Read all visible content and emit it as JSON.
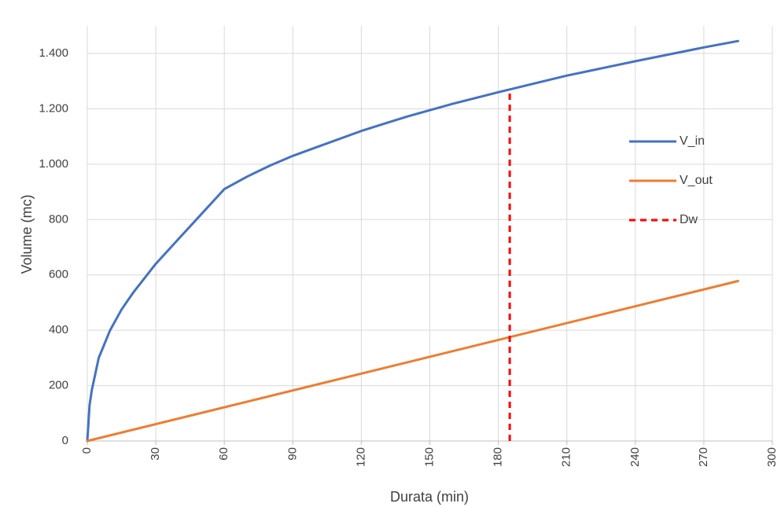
{
  "chart_data": {
    "type": "line",
    "title": "",
    "xlabel": "Durata (min)",
    "ylabel": "Volume (mc)",
    "xlim": [
      0,
      300
    ],
    "ylim": [
      0,
      1400
    ],
    "xticks": [
      0,
      30,
      60,
      90,
      120,
      150,
      180,
      210,
      240,
      270,
      300
    ],
    "yticks": [
      0,
      200,
      400,
      600,
      800,
      1000,
      1200,
      1400
    ],
    "ytick_labels": [
      "0",
      "200",
      "400",
      "600",
      "800",
      "1.000",
      "1.200",
      "1.400"
    ],
    "grid": true,
    "legend_position": "right",
    "series": [
      {
        "name": "V_in",
        "color": "#4472c4",
        "style": "solid",
        "x": [
          0,
          1,
          2,
          5,
          10,
          15,
          20,
          30,
          40,
          50,
          60,
          70,
          80,
          90,
          100,
          120,
          140,
          150,
          160,
          180,
          185,
          200,
          210,
          240,
          270,
          285
        ],
        "y": [
          0,
          130,
          185,
          300,
          400,
          475,
          535,
          640,
          730,
          820,
          910,
          955,
          995,
          1030,
          1060,
          1120,
          1172,
          1195,
          1218,
          1260,
          1270,
          1300,
          1320,
          1372,
          1422,
          1445
        ]
      },
      {
        "name": "V_out",
        "color": "#ed7d31",
        "style": "solid",
        "x": [
          0,
          285
        ],
        "y": [
          0,
          578
        ]
      },
      {
        "name": "Dw",
        "color": "#ff0000",
        "style": "dashed",
        "x": [
          185,
          185
        ],
        "y": [
          0,
          1270
        ]
      }
    ]
  }
}
